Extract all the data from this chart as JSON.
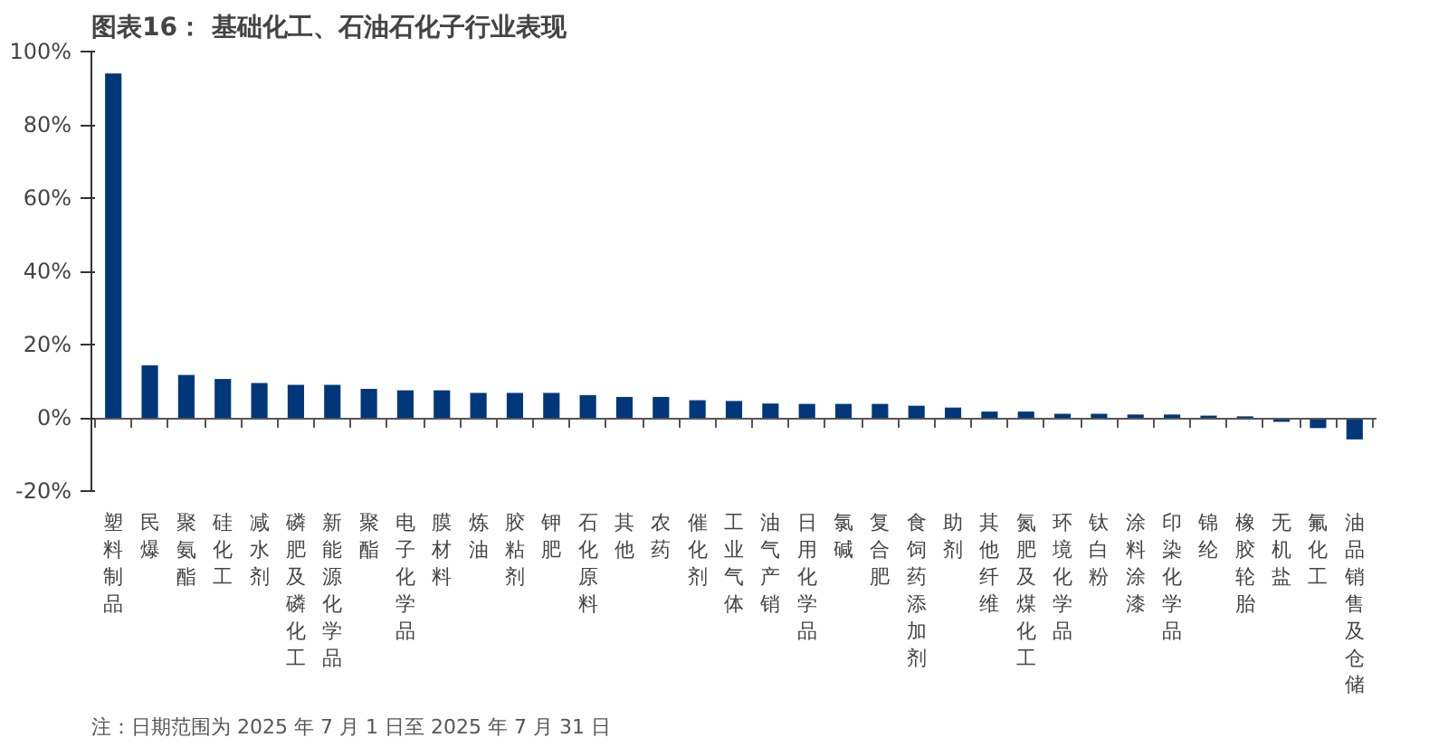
{
  "chart_data": {
    "type": "bar",
    "title": "图表16：  基础化工、石油石化子行业表现",
    "categories": [
      "塑料制品",
      "民爆",
      "聚氨酯",
      "硅化工",
      "减水剂",
      "磷肥及磷化工",
      "新能源化学品",
      "聚酯",
      "电子化学品",
      "膜材料",
      "炼油",
      "胶粘剂",
      "钾肥",
      "石化原料",
      "其他",
      "农药",
      "催化剂",
      "工业气体",
      "油气产销",
      "日用化学品",
      "氯碱",
      "复合肥",
      "食饲药添加剂",
      "助剂",
      "其他纤维",
      "氮肥及煤化工",
      "环境化学品",
      "钛白粉",
      "涂料涂漆",
      "印染化学品",
      "锦纶",
      "橡胶轮胎",
      "无机盐",
      "氟化工",
      "油品销售及仓储"
    ],
    "values": [
      94,
      14.3,
      11.7,
      10.6,
      9.5,
      9.0,
      9.0,
      7.9,
      7.5,
      7.5,
      6.8,
      6.8,
      6.8,
      6.2,
      5.7,
      5.7,
      4.8,
      4.6,
      3.9,
      3.8,
      3.8,
      3.8,
      3.3,
      2.8,
      1.7,
      1.7,
      1.1,
      1.1,
      0.9,
      0.9,
      0.6,
      0.4,
      -1.1,
      -2.8,
      -5.9
    ],
    "color": "#00377a",
    "ylim": [
      -20,
      100
    ],
    "yticks": [
      {
        "value": -20,
        "label": "-20%"
      },
      {
        "value": 0,
        "label": "0%"
      },
      {
        "value": 20,
        "label": "20%"
      },
      {
        "value": 40,
        "label": "40%"
      },
      {
        "value": 60,
        "label": "60%"
      },
      {
        "value": 80,
        "label": "80%"
      },
      {
        "value": 100,
        "label": "100%"
      }
    ],
    "annotations": [
      "注：日期范围为 2025 年 7 月 1 日至 2025 年 7 月 31 日"
    ]
  }
}
